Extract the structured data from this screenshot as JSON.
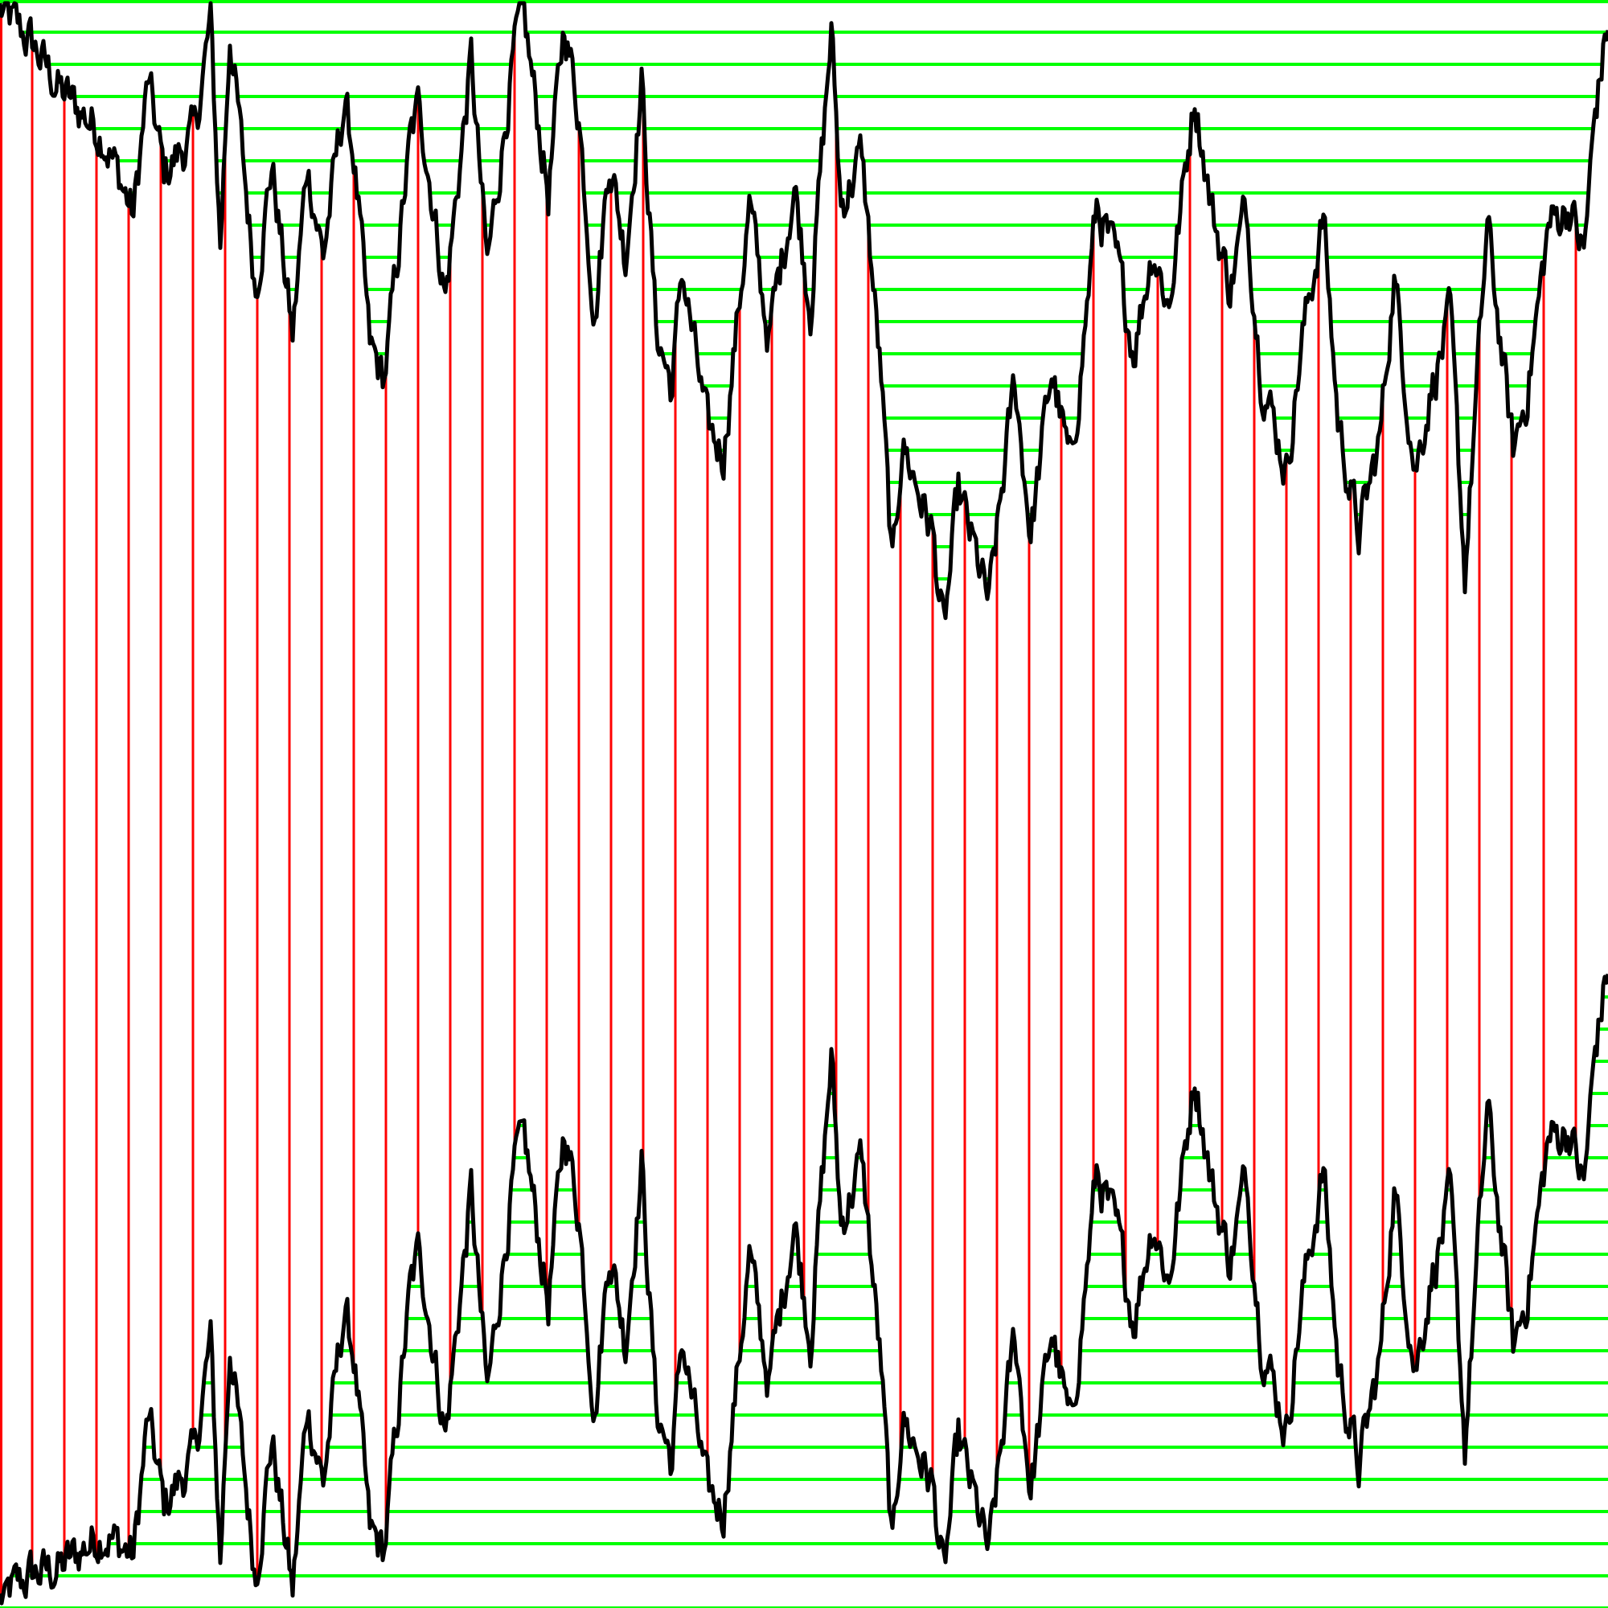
{
  "chart_data": {
    "type": "line",
    "title": "",
    "xlabel": "",
    "ylabel": "",
    "xlim": [
      0,
      100
    ],
    "ylim": [
      0,
      100
    ],
    "grid": false,
    "legend": "none",
    "colors": {
      "series": "#000000",
      "horizontal_lines": "#00ff00",
      "vertical_lines": "#ff0000",
      "background": "#ffffff"
    },
    "horizontal_line_count": 51,
    "vertical_line_count": 50,
    "series": [
      {
        "role": "upper",
        "points": [
          [
            0,
            99.4
          ],
          [
            1.9,
            97.4
          ],
          [
            3.8,
            94.3
          ],
          [
            6.4,
            91.7
          ],
          [
            8.3,
            86.6
          ],
          [
            9.2,
            94.9
          ],
          [
            10.2,
            89.2
          ],
          [
            12.1,
            91.7
          ],
          [
            13.1,
            98.7
          ],
          [
            13.7,
            84.7
          ],
          [
            14.3,
            98.1
          ],
          [
            15.9,
            82.1
          ],
          [
            16.9,
            89.8
          ],
          [
            18.2,
            79
          ],
          [
            19.1,
            89.8
          ],
          [
            20.1,
            84.1
          ],
          [
            21.4,
            93.6
          ],
          [
            22,
            90.4
          ],
          [
            23,
            78.3
          ],
          [
            23.9,
            76.4
          ],
          [
            25.5,
            91.1
          ],
          [
            26.1,
            93.6
          ],
          [
            27.7,
            81.5
          ],
          [
            29.3,
            96.2
          ],
          [
            30.3,
            83.4
          ],
          [
            31.9,
            96.2
          ],
          [
            32.5,
            99.4
          ],
          [
            34.1,
            87.9
          ],
          [
            35.1,
            98.7
          ],
          [
            36,
            93
          ],
          [
            37,
            80.2
          ],
          [
            37.9,
            90.4
          ],
          [
            38.9,
            84.1
          ],
          [
            39.9,
            94.9
          ],
          [
            40.8,
            79.6
          ],
          [
            41.8,
            75.8
          ],
          [
            42.4,
            83.4
          ],
          [
            44,
            73.2
          ],
          [
            45,
            71.9
          ],
          [
            46.6,
            87.2
          ],
          [
            47.8,
            79
          ],
          [
            49.4,
            88.5
          ],
          [
            50.4,
            80.9
          ],
          [
            51.7,
            98.1
          ],
          [
            52.3,
            87.2
          ],
          [
            53.6,
            90.4
          ],
          [
            54.8,
            76.4
          ],
          [
            55.5,
            64.3
          ],
          [
            56.1,
            72.6
          ],
          [
            58,
            66.8
          ],
          [
            58.7,
            60.5
          ],
          [
            59.6,
            69.4
          ],
          [
            61.5,
            62.4
          ],
          [
            63.1,
            76.4
          ],
          [
            64.1,
            66.8
          ],
          [
            65.4,
            77
          ],
          [
            66.6,
            70.7
          ],
          [
            68.2,
            87.2
          ],
          [
            69.5,
            83.4
          ],
          [
            70.5,
            78.3
          ],
          [
            71.7,
            84.7
          ],
          [
            72.7,
            80.9
          ],
          [
            74.3,
            94.3
          ],
          [
            75.3,
            87.2
          ],
          [
            76.5,
            82.1
          ],
          [
            77.5,
            87.2
          ],
          [
            78.4,
            77
          ],
          [
            80,
            70.7
          ],
          [
            81,
            79
          ],
          [
            82.3,
            86.6
          ],
          [
            83.2,
            73.9
          ],
          [
            84.5,
            66.8
          ],
          [
            85.8,
            72.6
          ],
          [
            86.7,
            82.8
          ],
          [
            88,
            70.7
          ],
          [
            89,
            75.8
          ],
          [
            90.2,
            80.2
          ],
          [
            91.1,
            64.3
          ],
          [
            92.5,
            86
          ],
          [
            94.1,
            71.9
          ],
          [
            95,
            75.8
          ],
          [
            96.3,
            86
          ],
          [
            97.6,
            87.2
          ],
          [
            98.5,
            84.1
          ],
          [
            99.2,
            93
          ],
          [
            100,
            98.7
          ]
        ]
      },
      {
        "role": "lower",
        "points": [
          [
            0,
            0.5
          ],
          [
            8.3,
            3.2
          ],
          [
            14.3,
            16.5
          ],
          [
            25.5,
            19.7
          ],
          [
            32.5,
            29.9
          ],
          [
            51.7,
            34.3
          ],
          [
            58.7,
            1.8
          ],
          [
            74.3,
            33.4
          ],
          [
            82.3,
            27.3
          ],
          [
            91.1,
            10.1
          ],
          [
            100,
            40
          ]
        ]
      }
    ]
  }
}
